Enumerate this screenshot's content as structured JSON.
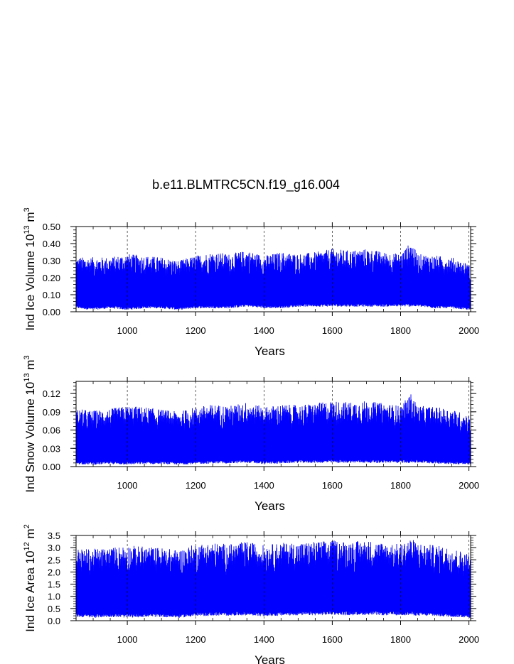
{
  "figure": {
    "title": "b.e11.BLMTRC5CN.f19_g16.004"
  },
  "chart_data": [
    {
      "type": "line",
      "ylabel": "Ind Ice Volume 10^13 m^3",
      "ylabel_parts": {
        "main": "Ind Ice Volume 10",
        "exp1": "13",
        "mid": " m",
        "exp2": "3"
      },
      "xlabel": "Years",
      "xlim": [
        850,
        2005
      ],
      "ylim": [
        0,
        0.5
      ],
      "x_ticks": [
        1000,
        1200,
        1400,
        1600,
        1800,
        2000
      ],
      "y_ticks": [
        0,
        0.1,
        0.2,
        0.3,
        0.4,
        0.5
      ],
      "y_tick_labels": [
        "0.00",
        "0.10",
        "0.20",
        "0.30",
        "0.40",
        "0.50"
      ],
      "y_minor_step": 0.02,
      "vertical_gridlines": [
        1000,
        1200,
        1400,
        1600,
        1800,
        2000
      ],
      "color": "#0000ff",
      "series": [
        {
          "x": [
            850,
            900,
            950,
            1000,
            1050,
            1100,
            1150,
            1200,
            1250,
            1300,
            1350,
            1400,
            1450,
            1500,
            1550,
            1600,
            1650,
            1700,
            1750,
            1800,
            1830,
            1850,
            1900,
            1950,
            2000,
            2005
          ],
          "upper": [
            0.32,
            0.32,
            0.32,
            0.34,
            0.33,
            0.32,
            0.3,
            0.33,
            0.35,
            0.34,
            0.36,
            0.33,
            0.35,
            0.34,
            0.35,
            0.37,
            0.36,
            0.37,
            0.35,
            0.34,
            0.41,
            0.34,
            0.33,
            0.32,
            0.28,
            0.25
          ],
          "lower": [
            0.02,
            0.01,
            0.02,
            0.01,
            0.02,
            0.02,
            0.01,
            0.02,
            0.02,
            0.02,
            0.03,
            0.02,
            0.02,
            0.03,
            0.03,
            0.03,
            0.03,
            0.03,
            0.03,
            0.03,
            0.03,
            0.03,
            0.02,
            0.02,
            0.01,
            0.01
          ]
        }
      ]
    },
    {
      "type": "line",
      "ylabel": "Ind Snow Volume 10^13 m^3",
      "ylabel_parts": {
        "main": "Ind Snow Volume 10",
        "exp1": "13",
        "mid": " m",
        "exp2": "3"
      },
      "xlabel": "Years",
      "xlim": [
        850,
        2005
      ],
      "ylim": [
        0,
        0.14
      ],
      "x_ticks": [
        1000,
        1200,
        1400,
        1600,
        1800,
        2000
      ],
      "y_ticks": [
        0,
        0.03,
        0.06,
        0.09,
        0.12
      ],
      "y_tick_labels": [
        "0.00",
        "0.03",
        "0.06",
        "0.09",
        "0.12"
      ],
      "y_minor_step": 0.006,
      "vertical_gridlines": [
        1000,
        1200,
        1400,
        1600,
        1800,
        2000
      ],
      "color": "#0000ff",
      "series": [
        {
          "x": [
            850,
            900,
            950,
            1000,
            1050,
            1100,
            1150,
            1200,
            1250,
            1300,
            1350,
            1400,
            1450,
            1500,
            1550,
            1600,
            1650,
            1700,
            1750,
            1800,
            1830,
            1850,
            1900,
            1950,
            2000,
            2005
          ],
          "upper": [
            0.095,
            0.092,
            0.095,
            0.1,
            0.098,
            0.094,
            0.09,
            0.098,
            0.102,
            0.1,
            0.106,
            0.098,
            0.102,
            0.101,
            0.104,
            0.108,
            0.106,
            0.108,
            0.104,
            0.1,
            0.12,
            0.1,
            0.098,
            0.094,
            0.085,
            0.07
          ],
          "lower": [
            0.004,
            0.003,
            0.004,
            0.003,
            0.004,
            0.004,
            0.003,
            0.004,
            0.005,
            0.005,
            0.006,
            0.004,
            0.005,
            0.006,
            0.006,
            0.006,
            0.006,
            0.006,
            0.006,
            0.006,
            0.006,
            0.006,
            0.005,
            0.004,
            0.003,
            0.003
          ]
        }
      ]
    },
    {
      "type": "line",
      "ylabel": "Ind Ice Area 10^12 m^2",
      "ylabel_parts": {
        "main": "Ind Ice Area 10",
        "exp1": "12",
        "mid": " m",
        "exp2": "2"
      },
      "xlabel": "Years",
      "xlim": [
        850,
        2005
      ],
      "ylim": [
        0,
        3.5
      ],
      "x_ticks": [
        1000,
        1200,
        1400,
        1600,
        1800,
        2000
      ],
      "y_ticks": [
        0,
        0.5,
        1,
        1.5,
        2,
        2.5,
        3,
        3.5
      ],
      "y_tick_labels": [
        "0.0",
        "0.5",
        "1.0",
        "1.5",
        "2.0",
        "2.5",
        "3.0",
        "3.5"
      ],
      "y_minor_step": 0.1,
      "vertical_gridlines": [
        1000,
        1200,
        1400,
        1600,
        1800,
        2000
      ],
      "color": "#0000ff",
      "series": [
        {
          "x": [
            850,
            900,
            950,
            1000,
            1050,
            1100,
            1150,
            1200,
            1250,
            1300,
            1350,
            1400,
            1450,
            1500,
            1550,
            1600,
            1650,
            1700,
            1750,
            1800,
            1830,
            1850,
            1900,
            1950,
            2000,
            2005
          ],
          "upper": [
            2.95,
            2.95,
            3.0,
            3.1,
            3.05,
            3.0,
            2.9,
            3.15,
            3.2,
            3.15,
            3.25,
            3.1,
            3.2,
            3.2,
            3.25,
            3.3,
            3.25,
            3.3,
            3.2,
            3.15,
            3.4,
            3.2,
            3.1,
            3.0,
            2.75,
            2.5
          ],
          "lower": [
            0.15,
            0.12,
            0.15,
            0.12,
            0.15,
            0.15,
            0.12,
            0.18,
            0.2,
            0.2,
            0.22,
            0.18,
            0.2,
            0.22,
            0.22,
            0.24,
            0.22,
            0.24,
            0.22,
            0.22,
            0.22,
            0.2,
            0.18,
            0.15,
            0.12,
            0.1
          ]
        }
      ]
    }
  ]
}
